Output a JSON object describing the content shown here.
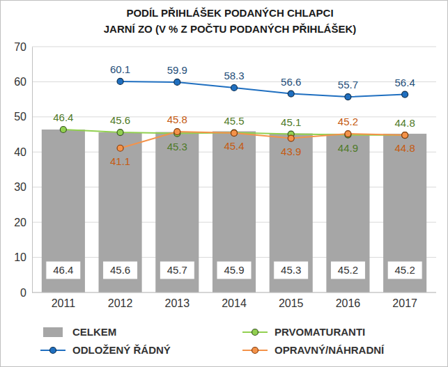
{
  "chart_data": {
    "type": "bar",
    "title": [
      "PODÍL PŘIHLÁŠEK PODANÝCH CHLAPCI",
      "JARNÍ ZO (V % Z POČTU PODANÝCH PŘIHLÁŠEK)"
    ],
    "categories": [
      "2011",
      "2012",
      "2013",
      "2014",
      "2015",
      "2016",
      "2017"
    ],
    "series": [
      {
        "name": "CELKEM",
        "type": "bar",
        "color": "#a6a6a6",
        "values": [
          46.4,
          45.6,
          45.7,
          45.9,
          45.3,
          45.2,
          45.2
        ]
      },
      {
        "name": "PRVOMATURANTI",
        "type": "line",
        "marker": "circle",
        "color": "#92d050",
        "values": [
          46.4,
          45.6,
          45.3,
          45.5,
          45.1,
          44.9,
          44.8
        ]
      },
      {
        "name": "ODLOŽENÝ ŘÁDNÝ",
        "type": "line",
        "marker": "circle",
        "color": "#1f6fc0",
        "values": [
          null,
          60.1,
          59.9,
          58.3,
          56.6,
          55.7,
          56.4
        ]
      },
      {
        "name": "OPRAVNÝ/NÁHRADNÍ",
        "type": "line",
        "marker": "circle",
        "color": "#f4934a",
        "values": [
          null,
          41.1,
          45.8,
          45.4,
          43.9,
          45.2,
          44.8
        ]
      }
    ],
    "ylim": [
      0,
      70
    ],
    "yticks": [
      0,
      10,
      20,
      30,
      40,
      50,
      60,
      70
    ],
    "grid": true,
    "legend": "bottom",
    "data_labels": true
  }
}
